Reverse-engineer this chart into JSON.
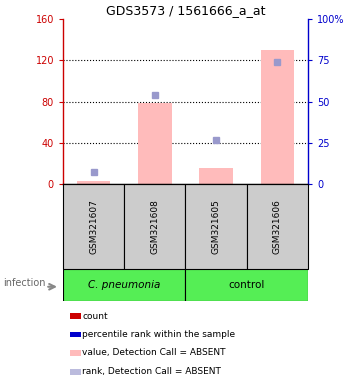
{
  "title": "GDS3573 / 1561666_a_at",
  "samples": [
    "GSM321607",
    "GSM321608",
    "GSM321605",
    "GSM321606"
  ],
  "bar_values": [
    3,
    79,
    16,
    130
  ],
  "bar_color": "#ffbbbb",
  "dot_values_pct": [
    7.5,
    54,
    27,
    74
  ],
  "dot_color": "#9999cc",
  "ylim_left": [
    0,
    160
  ],
  "ylim_right": [
    0,
    100
  ],
  "yticks_left": [
    0,
    40,
    80,
    120,
    160
  ],
  "ytick_labels_left": [
    "0",
    "40",
    "80",
    "120",
    "160"
  ],
  "yticks_right": [
    0,
    25,
    50,
    75,
    100
  ],
  "ytick_labels_right": [
    "0",
    "25",
    "50",
    "75",
    "100%"
  ],
  "left_axis_color": "#cc0000",
  "right_axis_color": "#0000cc",
  "legend_colors": [
    "#cc0000",
    "#0000cc",
    "#ffbbbb",
    "#bbbbdd"
  ],
  "legend_labels": [
    "count",
    "percentile rank within the sample",
    "value, Detection Call = ABSENT",
    "rank, Detection Call = ABSENT"
  ],
  "group1_label": "C. pneumonia",
  "group2_label": "control",
  "infection_label": "infection",
  "group_color": "#55ee55",
  "sample_box_color": "#cccccc",
  "figsize": [
    3.5,
    3.84
  ],
  "dpi": 100
}
